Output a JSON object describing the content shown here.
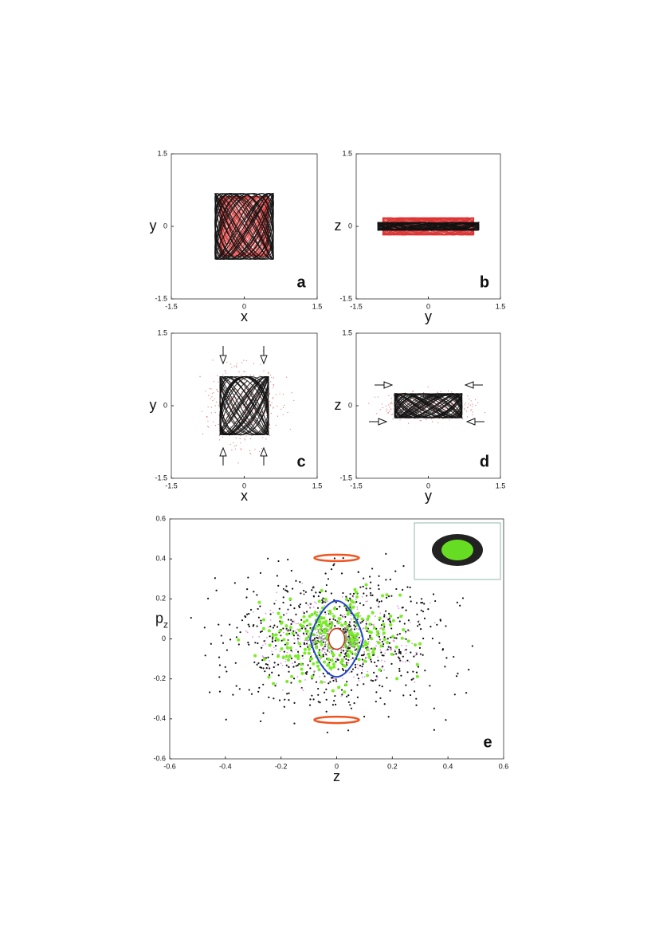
{
  "chart_data": [
    {
      "type": "scatter",
      "xlabel": "x",
      "ylabel": "y",
      "panel_label": "a",
      "xlim": [
        -1.5,
        1.5
      ],
      "ylim": [
        -1.5,
        1.5
      ],
      "xticks": [
        -1.5,
        0,
        1.5
      ],
      "yticks": [
        -1.5,
        0,
        1.5
      ]
    },
    {
      "type": "scatter",
      "xlabel": "y",
      "ylabel": "z",
      "panel_label": "b",
      "xlim": [
        -1.5,
        1.5
      ],
      "ylim": [
        -1.5,
        1.5
      ],
      "xticks": [
        -1.5,
        0,
        1.5
      ],
      "yticks": [
        -1.5,
        0,
        1.5
      ]
    },
    {
      "type": "scatter",
      "xlabel": "x",
      "ylabel": "y",
      "panel_label": "c",
      "xlim": [
        -1.5,
        1.5
      ],
      "ylim": [
        -1.5,
        1.5
      ],
      "xticks": [
        -1.5,
        0,
        1.5
      ],
      "yticks": [
        -1.5,
        0,
        1.5
      ]
    },
    {
      "type": "scatter",
      "xlabel": "y",
      "ylabel": "z",
      "panel_label": "d",
      "xlim": [
        -1.5,
        1.5
      ],
      "ylim": [
        -1.5,
        1.5
      ],
      "xticks": [
        -1.5,
        0,
        1.5
      ],
      "yticks": [
        -1.5,
        0,
        1.5
      ]
    },
    {
      "type": "scatter",
      "xlabel": "z",
      "ylabel": "p",
      "ylabel_sub": "z",
      "panel_label": "e",
      "xlim": [
        -0.6,
        0.6
      ],
      "ylim": [
        -0.6,
        0.6
      ],
      "xticks": [
        -0.6,
        -0.4,
        -0.2,
        0,
        0.2,
        0.4,
        0.6
      ],
      "yticks": [
        -0.6,
        -0.4,
        -0.2,
        0,
        0.2,
        0.4,
        0.6
      ]
    }
  ]
}
